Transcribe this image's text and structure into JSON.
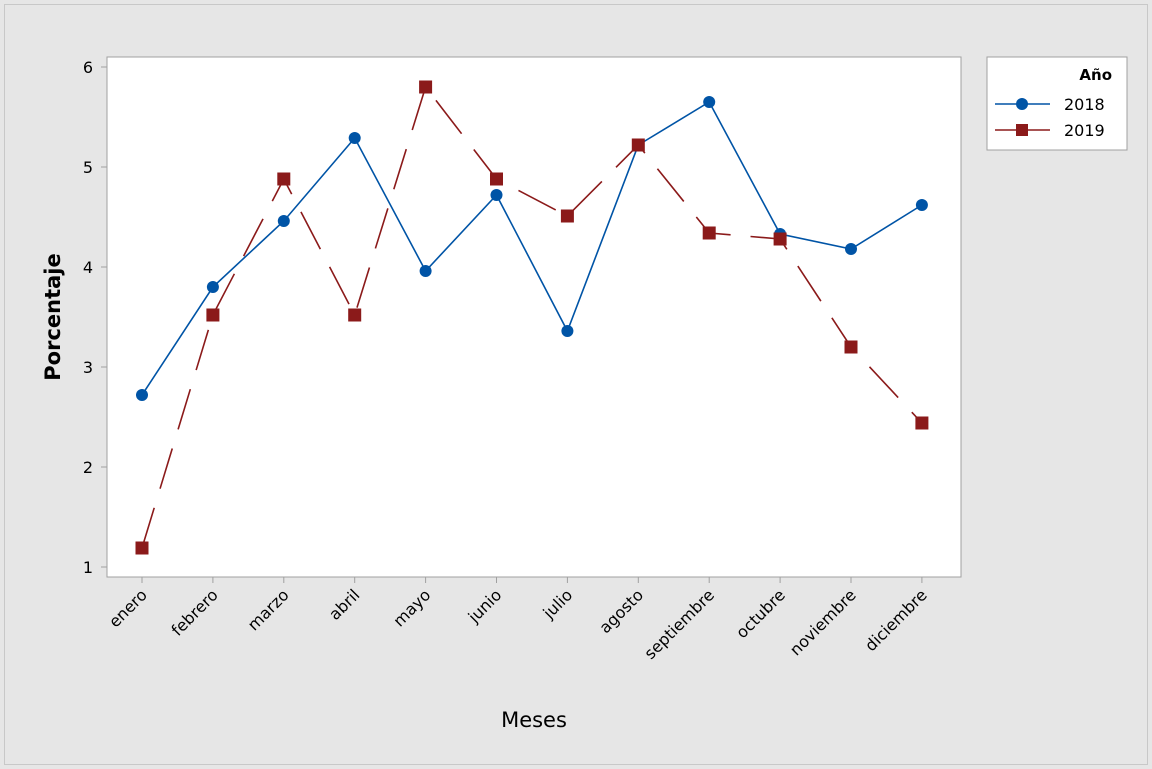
{
  "chart_data": {
    "type": "line",
    "title": "",
    "xlabel": "Meses",
    "ylabel": "Porcentaje",
    "categories": [
      "enero",
      "febrero",
      "marzo",
      "abril",
      "mayo",
      "junio",
      "julio",
      "agosto",
      "septiembre",
      "octubre",
      "noviembre",
      "diciembre"
    ],
    "ylim": [
      1,
      6
    ],
    "yticks": [
      1,
      2,
      3,
      4,
      5,
      6
    ],
    "grid": false,
    "legend": {
      "title": "Año",
      "placement": "right-top"
    },
    "series": [
      {
        "name": "2018",
        "color": "#0054a6",
        "marker": "circle",
        "line_style": "solid",
        "values": [
          2.72,
          3.8,
          4.46,
          5.29,
          3.96,
          4.72,
          3.36,
          5.22,
          5.65,
          4.33,
          4.18,
          4.62
        ]
      },
      {
        "name": "2019",
        "color": "#8b1a1a",
        "marker": "square",
        "line_style": "dashed",
        "values": [
          1.19,
          3.52,
          4.88,
          3.52,
          5.8,
          4.88,
          4.51,
          5.22,
          4.34,
          4.28,
          3.2,
          2.44
        ]
      }
    ]
  },
  "colors": {
    "outer_background": "#e6e6e6",
    "plot_background": "#ffffff",
    "frame": "#a0a0a0"
  }
}
